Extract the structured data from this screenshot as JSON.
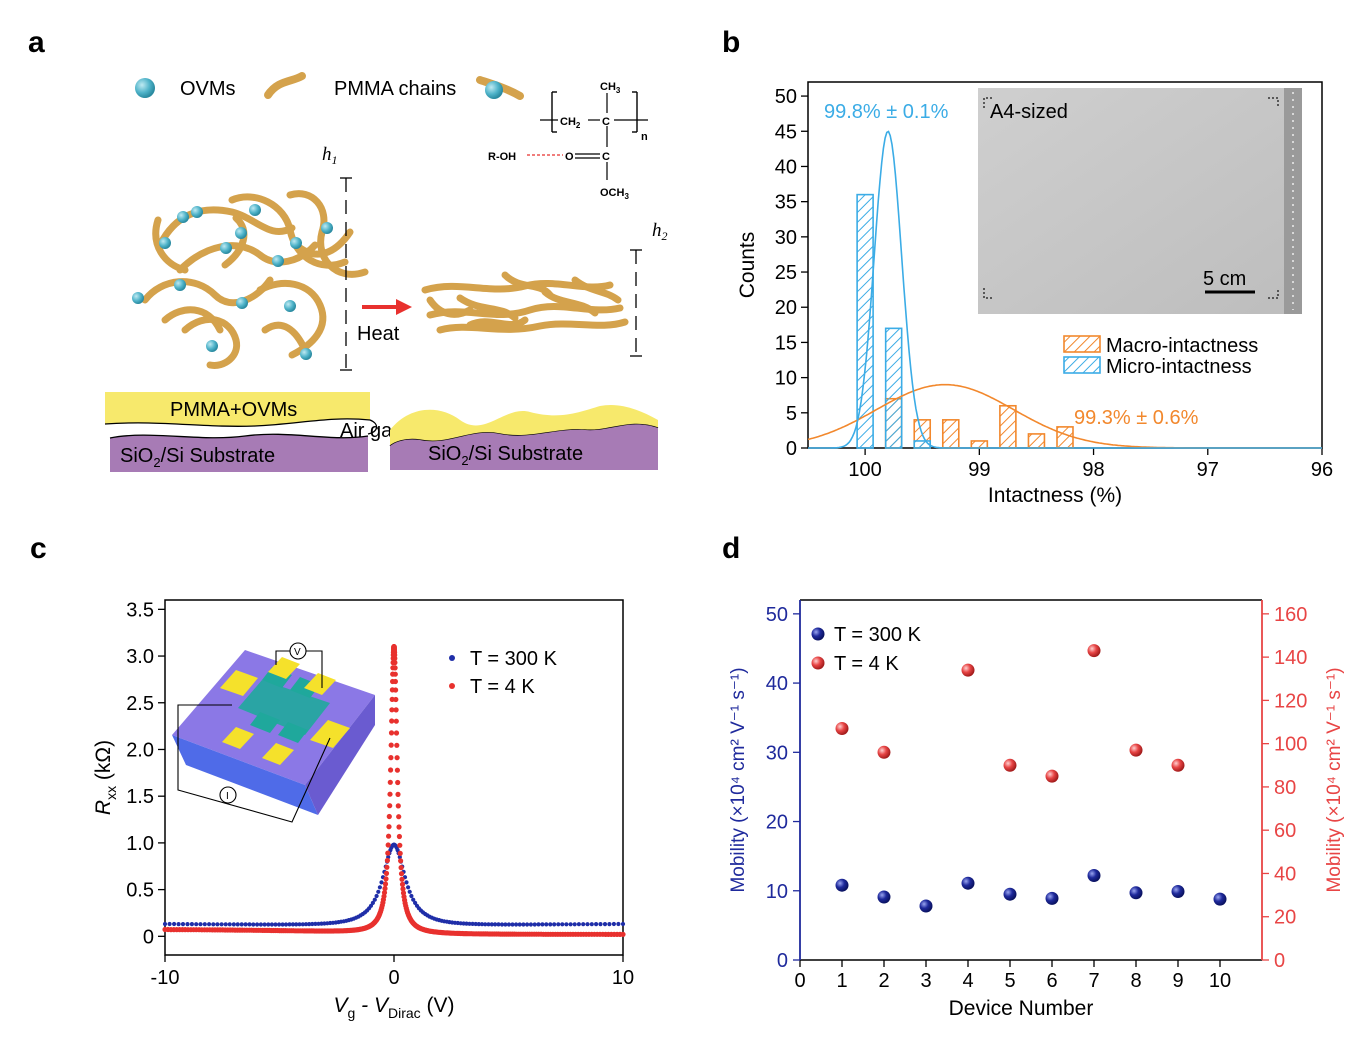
{
  "panels": {
    "a": {
      "label": "a",
      "legend_ovms": "OVMs",
      "legend_pmma": "PMMA chains",
      "h1": "h",
      "h1_sub": "1",
      "h2": "h",
      "h2_sub": "2",
      "heat": "Heat",
      "film_left": "PMMA+OVMs",
      "air_gap": "Air gap",
      "substrate_left_a": "SiO",
      "substrate_left_b": "2",
      "substrate_left_c": "/Si   Substrate",
      "substrate_right_a": "SiO",
      "substrate_right_b": "2",
      "substrate_right_c": "/Si    Substrate",
      "chem": {
        "ch3": "CH",
        "ch3_sub": "3",
        "ch2": "CH",
        "ch2_sub": "2",
        "c1": "C",
        "c2": "C",
        "n": "n",
        "roh": "R-OH",
        "o": "O",
        "och3": "OCH",
        "och3_sub": "3"
      },
      "colors": {
        "ovm": "#4FB3C9",
        "chain": "#D4A24C",
        "film": "#F7E96C",
        "substrate": "#A77BB5"
      }
    },
    "b": {
      "label": "b",
      "inset_label": "A4-sized",
      "scale_bar": "5 cm"
    },
    "c": {
      "label": "c",
      "probe_v": "V",
      "probe_i": "I"
    },
    "d": {
      "label": "d"
    }
  },
  "chart_data": [
    {
      "panel": "b",
      "type": "bar",
      "xlabel": "Intactness (%)",
      "ylabel": "Counts",
      "xlim": [
        100.5,
        96
      ],
      "ylim": [
        0,
        52
      ],
      "xticks": [
        "100",
        "99",
        "98",
        "97",
        "96"
      ],
      "yticks": [
        "0",
        "5",
        "10",
        "15",
        "20",
        "25",
        "30",
        "35",
        "40",
        "45",
        "50"
      ],
      "bin_width": 0.25,
      "series": [
        {
          "name": "Macro-intactness",
          "color": "#F2882D",
          "bins": [
            [
              100.0,
              0
            ],
            [
              99.75,
              7
            ],
            [
              99.5,
              4
            ],
            [
              99.25,
              4
            ],
            [
              99.0,
              1
            ],
            [
              98.75,
              6
            ],
            [
              98.5,
              2
            ],
            [
              98.25,
              3
            ]
          ],
          "fit": {
            "mean": 99.3,
            "sigma": 0.6,
            "peak": 9
          },
          "annotation": "99.3% ± 0.6%"
        },
        {
          "name": "Micro-intactness",
          "color": "#3BACE6",
          "bins": [
            [
              100.0,
              36
            ],
            [
              99.75,
              17
            ],
            [
              99.5,
              1
            ]
          ],
          "fit": {
            "mean": 99.8,
            "sigma": 0.12,
            "peak": 45
          },
          "annotation": "99.8% ± 0.1%"
        }
      ],
      "legend_position": "bottom-right"
    },
    {
      "panel": "c",
      "type": "line",
      "xlabel_a": "V",
      "xlabel_a_sub": "g",
      "xlabel_b": " - V",
      "xlabel_b_sub": "Dirac",
      "xlabel_c": " (V)",
      "ylabel_a": "R",
      "ylabel_sub": "xx",
      "ylabel_b": " (kΩ)",
      "xlim": [
        -10,
        10
      ],
      "ylim": [
        -0.2,
        3.6
      ],
      "xticks": [
        "-10",
        "0",
        "10"
      ],
      "yticks": [
        "0",
        "0.5",
        "1.0",
        "1.5",
        "2.0",
        "2.5",
        "3.0",
        "3.5"
      ],
      "series": [
        {
          "name": "T = 300 K",
          "color": "#1F2EA8",
          "peak": 0.98,
          "width": 0.6,
          "background": 0.08
        },
        {
          "name": "T = 4 K",
          "color": "#E8312E",
          "peak": 3.1,
          "width": 0.17,
          "background": 0.02
        }
      ],
      "legend_position": "top-right"
    },
    {
      "panel": "d",
      "type": "scatter",
      "xlabel": "Device Number",
      "ylabel_left": "Mobility (×10⁴ cm² V⁻¹ s⁻¹)",
      "ylabel_right": "Mobility (×10⁴ cm² V⁻¹ s⁻¹)",
      "xlim": [
        0,
        11
      ],
      "ylim_left": [
        0,
        52
      ],
      "ylim_right": [
        0,
        166.4
      ],
      "xticks": [
        "0",
        "1",
        "2",
        "3",
        "4",
        "5",
        "6",
        "7",
        "8",
        "9",
        "10"
      ],
      "yticks_left": [
        "0",
        "10",
        "20",
        "30",
        "40",
        "50"
      ],
      "yticks_right": [
        "0",
        "20",
        "40",
        "60",
        "80",
        "100",
        "120",
        "140",
        "160"
      ],
      "series": [
        {
          "name": "T = 300 K",
          "axis": "left",
          "color": "#1F2A9C",
          "x": [
            1,
            2,
            3,
            4,
            5,
            6,
            7,
            8,
            9,
            10
          ],
          "y": [
            10.8,
            9.1,
            7.8,
            11.1,
            9.5,
            8.9,
            12.2,
            9.7,
            9.9,
            8.8
          ]
        },
        {
          "name": "T = 4 K",
          "axis": "right",
          "color": "#E84545",
          "x": [
            1,
            2,
            4,
            5,
            6,
            7,
            8,
            9
          ],
          "y": [
            107,
            96,
            134,
            90,
            85,
            143,
            97,
            90
          ]
        }
      ],
      "legend_position": "top-left"
    }
  ]
}
